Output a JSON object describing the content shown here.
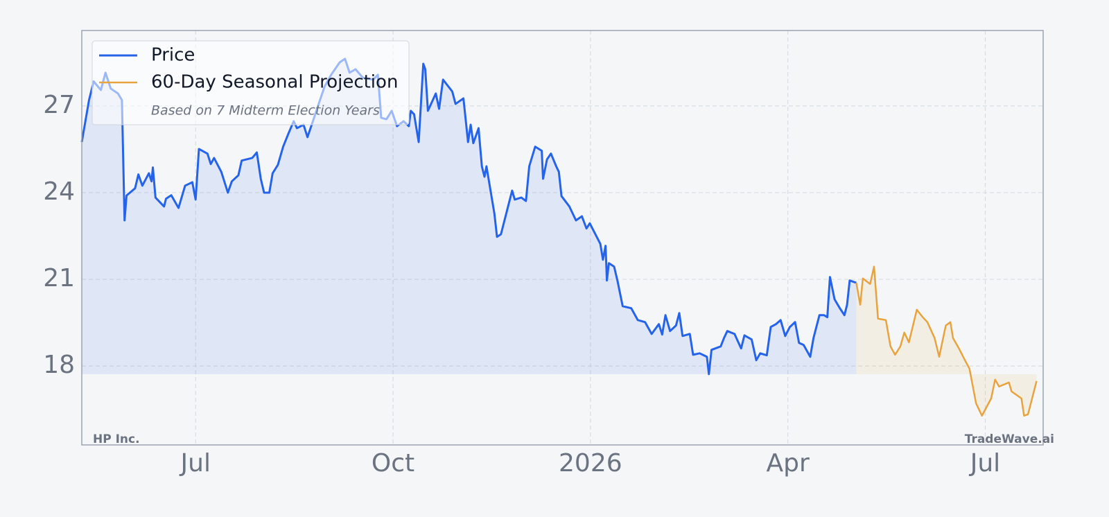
{
  "chart_data": {
    "type": "line",
    "legend_note": "Based on 7 Midterm Election Years",
    "source_label": "HP Inc.",
    "watermark": "TradeWave.ai",
    "xlim": [
      4.27,
      18.88
    ],
    "xticks": [
      {
        "value": 6,
        "label": "Jul"
      },
      {
        "value": 9,
        "label": "Oct"
      },
      {
        "value": 12,
        "label": "2026"
      },
      {
        "value": 15,
        "label": "Apr"
      },
      {
        "value": 18,
        "label": "Jul"
      }
    ],
    "ylim": [
      15.27,
      29.61
    ],
    "yticks": [
      18,
      21,
      24,
      27
    ],
    "grid": true,
    "legend": "upper left",
    "series": [
      {
        "name": "Price",
        "color": "#2563eb",
        "x": [
          4.27,
          4.38,
          4.45,
          4.56,
          4.63,
          4.71,
          4.82,
          4.88,
          4.92,
          4.95,
          5.08,
          5.13,
          5.19,
          5.29,
          5.33,
          5.35,
          5.39,
          5.52,
          5.55,
          5.63,
          5.74,
          5.84,
          5.95,
          6.0,
          6.05,
          6.18,
          6.23,
          6.28,
          6.39,
          6.49,
          6.55,
          6.65,
          6.7,
          6.86,
          6.93,
          6.99,
          7.04,
          7.12,
          7.17,
          7.25,
          7.33,
          7.41,
          7.49,
          7.54,
          7.64,
          7.7,
          7.8,
          7.87,
          7.96,
          8.06,
          8.19,
          8.27,
          8.34,
          8.43,
          8.54,
          8.7,
          8.77,
          8.82,
          8.9,
          8.98,
          9.06,
          9.16,
          9.24,
          9.27,
          9.32,
          9.39,
          9.46,
          9.49,
          9.53,
          9.65,
          9.7,
          9.76,
          9.9,
          9.95,
          10.07,
          10.14,
          10.18,
          10.22,
          10.3,
          10.35,
          10.39,
          10.42,
          10.54,
          10.58,
          10.64,
          10.81,
          10.85,
          10.95,
          11.02,
          11.07,
          11.16,
          11.26,
          11.28,
          11.34,
          11.4,
          11.48,
          11.52,
          11.56,
          11.68,
          11.78,
          11.87,
          11.94,
          11.99,
          12.15,
          12.19,
          12.23,
          12.25,
          12.28,
          12.36,
          12.41,
          12.49,
          12.62,
          12.72,
          12.83,
          12.93,
          13.04,
          13.09,
          13.14,
          13.21,
          13.3,
          13.35,
          13.4,
          13.51,
          13.56,
          13.66,
          13.77,
          13.8,
          13.84,
          13.98,
          14.03,
          14.08,
          14.19,
          14.29,
          14.34,
          14.45,
          14.52,
          14.58,
          14.68,
          14.74,
          14.82,
          14.89,
          14.96,
          15.03,
          15.11,
          15.17,
          15.24,
          15.34,
          15.39,
          15.48,
          15.55,
          15.6,
          15.64,
          15.71,
          15.79,
          15.86,
          15.9,
          15.94,
          16.04
        ],
        "values": [
          25.75,
          27.2,
          27.85,
          27.55,
          28.15,
          27.6,
          27.43,
          27.2,
          23.04,
          23.9,
          24.15,
          24.63,
          24.24,
          24.67,
          24.39,
          24.87,
          23.83,
          23.52,
          23.79,
          23.91,
          23.47,
          24.24,
          24.36,
          23.76,
          25.51,
          25.35,
          24.99,
          25.2,
          24.72,
          24.0,
          24.39,
          24.6,
          25.11,
          25.2,
          25.39,
          24.48,
          24.0,
          24.0,
          24.67,
          24.96,
          25.59,
          26.04,
          26.47,
          26.23,
          26.35,
          25.92,
          26.59,
          27.07,
          27.67,
          28.08,
          28.51,
          28.63,
          28.15,
          28.27,
          27.98,
          27.91,
          28.08,
          26.59,
          26.54,
          26.83,
          26.3,
          26.47,
          26.3,
          26.83,
          26.71,
          25.75,
          28.46,
          28.27,
          26.83,
          27.43,
          26.9,
          27.91,
          27.5,
          27.07,
          27.26,
          25.75,
          26.35,
          25.71,
          26.23,
          24.91,
          24.55,
          24.91,
          23.28,
          22.47,
          22.56,
          24.07,
          23.76,
          23.83,
          23.71,
          24.91,
          25.59,
          25.45,
          24.48,
          25.15,
          25.35,
          24.91,
          24.72,
          23.88,
          23.52,
          23.04,
          23.18,
          22.76,
          22.94,
          22.23,
          21.68,
          22.16,
          20.96,
          21.56,
          21.44,
          20.96,
          20.07,
          20.0,
          19.59,
          19.52,
          19.11,
          19.45,
          19.09,
          19.76,
          19.21,
          19.4,
          19.83,
          19.04,
          19.11,
          18.39,
          18.44,
          18.32,
          17.72,
          18.56,
          18.68,
          18.97,
          19.21,
          19.11,
          18.61,
          19.06,
          18.92,
          18.2,
          18.44,
          18.37,
          19.35,
          19.45,
          19.59,
          19.04,
          19.35,
          19.52,
          18.8,
          18.73,
          18.32,
          18.97,
          19.76,
          19.76,
          19.69,
          21.08,
          20.31,
          20.0,
          19.76,
          20.12,
          20.96,
          20.88
        ]
      },
      {
        "name": "60-Day Seasonal Projection",
        "color": "#e8a33d",
        "x": [
          16.04,
          16.1,
          16.14,
          16.25,
          16.31,
          16.37,
          16.49,
          16.56,
          16.63,
          16.71,
          16.77,
          16.84,
          16.96,
          17.05,
          17.12,
          17.23,
          17.3,
          17.4,
          17.47,
          17.51,
          17.6,
          17.68,
          17.76,
          17.86,
          17.95,
          18.09,
          18.15,
          18.21,
          18.36,
          18.4,
          18.55,
          18.59,
          18.65,
          18.78
        ],
        "values": [
          20.88,
          20.12,
          21.03,
          20.84,
          21.44,
          19.64,
          19.59,
          18.68,
          18.39,
          18.68,
          19.16,
          18.82,
          19.95,
          19.69,
          19.52,
          18.97,
          18.32,
          19.4,
          19.52,
          18.97,
          18.61,
          18.25,
          17.91,
          16.71,
          16.28,
          16.88,
          17.53,
          17.29,
          17.43,
          17.12,
          16.88,
          16.28,
          16.33,
          17.48
        ]
      }
    ]
  }
}
